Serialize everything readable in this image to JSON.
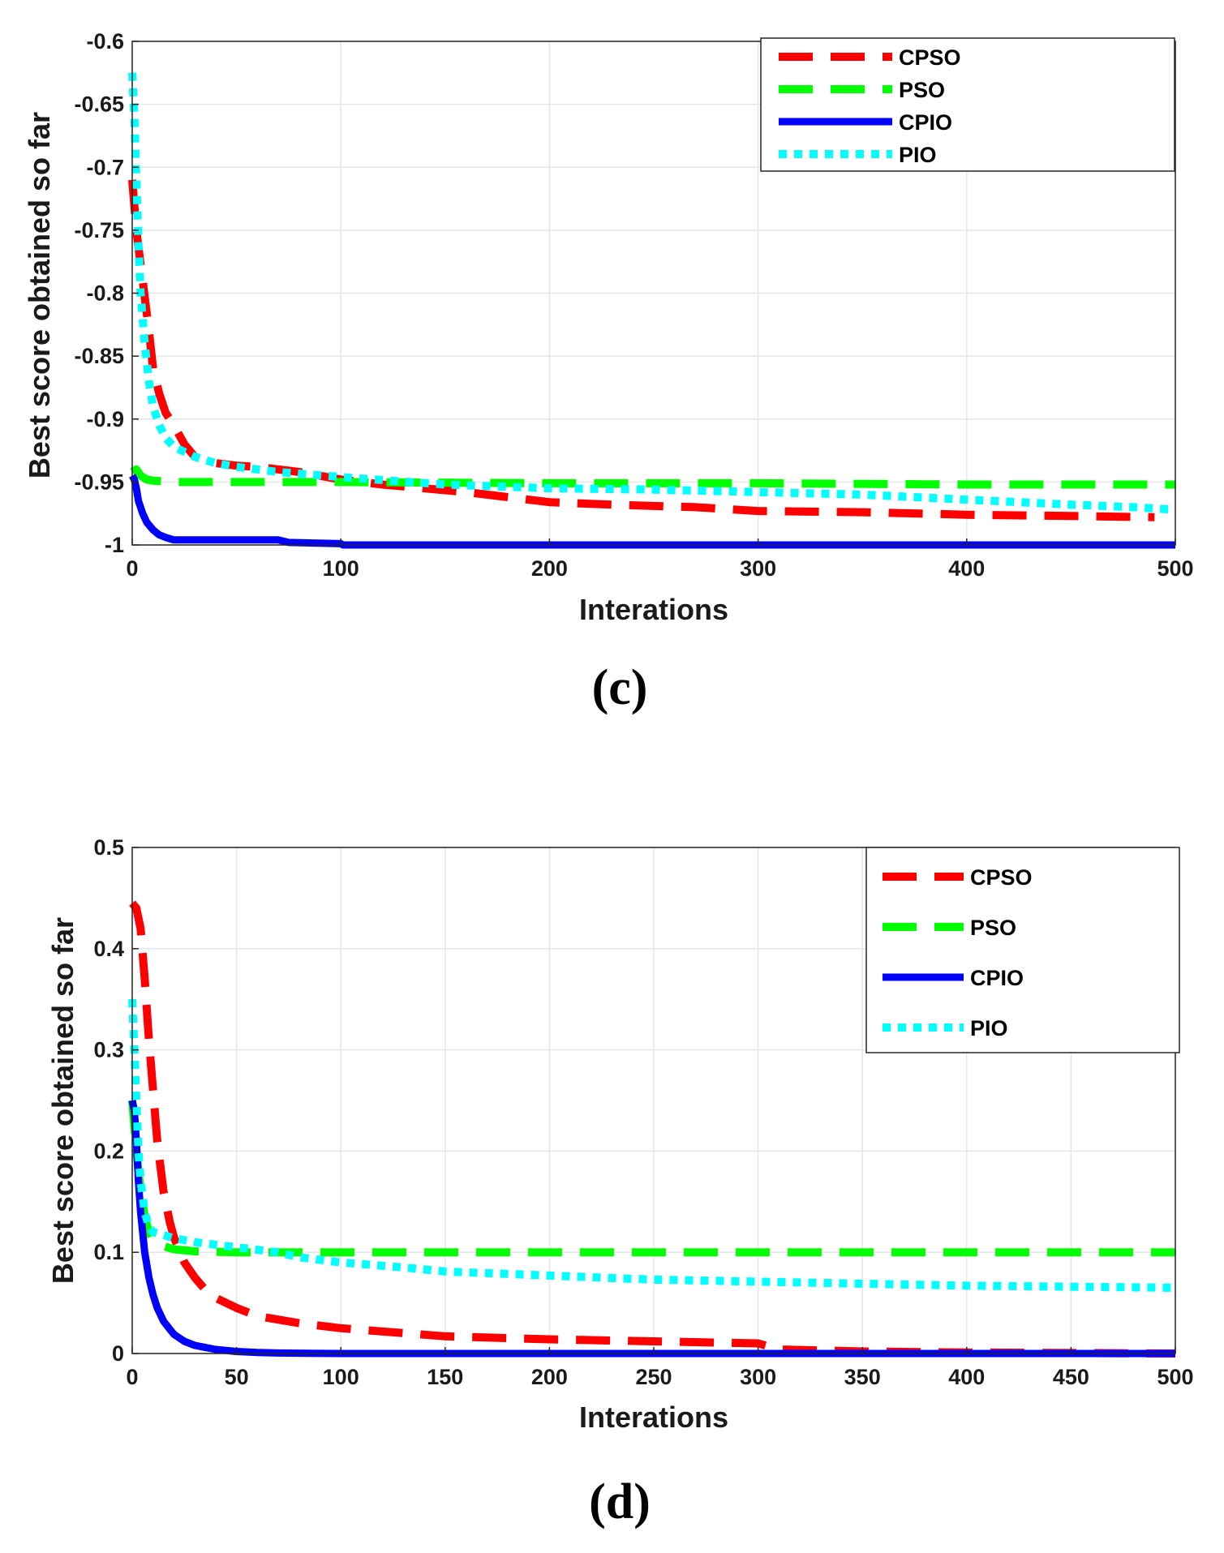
{
  "chart_data": [
    {
      "type": "line",
      "panel_label": "(c)",
      "xlabel": "Interations",
      "ylabel": "Best score obtained so far",
      "xlim": [
        0,
        500
      ],
      "ylim": [
        -1,
        -0.6
      ],
      "xticks": [
        0,
        100,
        200,
        300,
        400,
        500
      ],
      "yticks": [
        -1,
        -0.95,
        -0.9,
        -0.85,
        -0.8,
        -0.75,
        -0.7,
        -0.65,
        -0.6
      ],
      "xtick_labels": [
        "0",
        "100",
        "200",
        "300",
        "400",
        "500"
      ],
      "ytick_labels": [
        "-1",
        "-0.95",
        "-0.9",
        "-0.85",
        "-0.8",
        "-0.75",
        "-0.7",
        "-0.65",
        "-0.6"
      ],
      "grid": true,
      "legend_position": "top-right",
      "series": [
        {
          "name": "CPSO",
          "color": "#ff0000",
          "style": "dashed",
          "x": [
            0,
            2,
            5,
            8,
            10,
            13,
            16,
            20,
            25,
            30,
            40,
            50,
            60,
            80,
            100,
            120,
            140,
            160,
            180,
            200,
            230,
            270,
            300,
            350,
            400,
            450,
            490
          ],
          "y": [
            -0.71,
            -0.75,
            -0.79,
            -0.83,
            -0.86,
            -0.88,
            -0.895,
            -0.905,
            -0.92,
            -0.93,
            -0.935,
            -0.937,
            -0.938,
            -0.942,
            -0.948,
            -0.952,
            -0.955,
            -0.958,
            -0.962,
            -0.966,
            -0.968,
            -0.97,
            -0.973,
            -0.974,
            -0.976,
            -0.977,
            -0.978
          ]
        },
        {
          "name": "PSO",
          "color": "#00ff00",
          "style": "dashed",
          "x": [
            0,
            2,
            4,
            7,
            10,
            20,
            50,
            100,
            200,
            300,
            400,
            500
          ],
          "y": [
            -0.942,
            -0.94,
            -0.945,
            -0.948,
            -0.949,
            -0.95,
            -0.95,
            -0.95,
            -0.951,
            -0.951,
            -0.952,
            -0.952
          ]
        },
        {
          "name": "CPIO",
          "color": "#0000ff",
          "style": "solid",
          "x": [
            0,
            1,
            2,
            3,
            5,
            7,
            10,
            13,
            16,
            20,
            30,
            50,
            70,
            75,
            100,
            101,
            200,
            300,
            400,
            500
          ],
          "y": [
            -0.945,
            -0.948,
            -0.955,
            -0.965,
            -0.975,
            -0.982,
            -0.988,
            -0.992,
            -0.994,
            -0.996,
            -0.996,
            -0.996,
            -0.996,
            -0.998,
            -0.999,
            -1.0,
            -1.0,
            -1.0,
            -1.0,
            -1.0
          ]
        },
        {
          "name": "PIO",
          "color": "#00ffff",
          "style": "dotted",
          "x": [
            0,
            1,
            2,
            3,
            4,
            6,
            8,
            10,
            13,
            16,
            20,
            25,
            30,
            40,
            50,
            70,
            100,
            150,
            200,
            250,
            300,
            350,
            400,
            450,
            480,
            500
          ],
          "y": [
            -0.625,
            -0.66,
            -0.71,
            -0.76,
            -0.8,
            -0.84,
            -0.87,
            -0.89,
            -0.905,
            -0.915,
            -0.922,
            -0.926,
            -0.93,
            -0.935,
            -0.938,
            -0.942,
            -0.946,
            -0.952,
            -0.955,
            -0.956,
            -0.958,
            -0.96,
            -0.964,
            -0.968,
            -0.97,
            -0.972
          ]
        }
      ]
    },
    {
      "type": "line",
      "panel_label": "(d)",
      "xlabel": "Interations",
      "ylabel": "Best score obtained so far",
      "xlim": [
        0,
        500
      ],
      "ylim": [
        0,
        0.5
      ],
      "xticks": [
        0,
        50,
        100,
        150,
        200,
        250,
        300,
        350,
        400,
        450,
        500
      ],
      "yticks": [
        0,
        0.1,
        0.2,
        0.3,
        0.4,
        0.5
      ],
      "xtick_labels": [
        "0",
        "50",
        "100",
        "150",
        "200",
        "250",
        "300",
        "350",
        "400",
        "450",
        "500"
      ],
      "ytick_labels": [
        "0",
        "0.1",
        "0.2",
        "0.3",
        "0.4",
        "0.5"
      ],
      "grid": true,
      "legend_position": "top-right",
      "series": [
        {
          "name": "CPSO",
          "color": "#ff0000",
          "style": "dashed",
          "x": [
            0,
            2,
            4,
            6,
            8,
            10,
            12,
            15,
            18,
            20,
            25,
            30,
            35,
            40,
            50,
            60,
            80,
            100,
            150,
            200,
            250,
            300,
            310,
            350,
            400,
            500
          ],
          "y": [
            0.445,
            0.44,
            0.42,
            0.37,
            0.31,
            0.26,
            0.21,
            0.16,
            0.13,
            0.115,
            0.09,
            0.075,
            0.063,
            0.055,
            0.045,
            0.037,
            0.03,
            0.025,
            0.017,
            0.014,
            0.012,
            0.01,
            0.004,
            0.002,
            0.001,
            0.0
          ]
        },
        {
          "name": "PSO",
          "color": "#00ff00",
          "style": "dashed",
          "x": [
            0,
            2,
            4,
            6,
            8,
            10,
            15,
            20,
            30,
            50,
            100,
            200,
            300,
            400,
            500
          ],
          "y": [
            0.25,
            0.2,
            0.16,
            0.135,
            0.12,
            0.112,
            0.106,
            0.103,
            0.101,
            0.1,
            0.1,
            0.1,
            0.1,
            0.1,
            0.1
          ]
        },
        {
          "name": "CPIO",
          "color": "#0000ff",
          "style": "solid",
          "x": [
            0,
            1,
            2,
            3,
            4,
            6,
            8,
            10,
            12,
            15,
            18,
            20,
            25,
            30,
            40,
            50,
            60,
            70,
            100,
            200,
            300,
            400,
            500
          ],
          "y": [
            0.25,
            0.24,
            0.21,
            0.17,
            0.14,
            0.1,
            0.075,
            0.058,
            0.045,
            0.032,
            0.024,
            0.019,
            0.012,
            0.008,
            0.004,
            0.002,
            0.001,
            0.0005,
            0.0,
            0.0,
            0.0,
            0.0,
            0.0
          ]
        },
        {
          "name": "PIO",
          "color": "#00ffff",
          "style": "dotted",
          "x": [
            0,
            1,
            2,
            3,
            4,
            6,
            8,
            10,
            15,
            20,
            30,
            50,
            70,
            80,
            100,
            130,
            150,
            200,
            250,
            300,
            350,
            400,
            450,
            500
          ],
          "y": [
            0.35,
            0.3,
            0.25,
            0.2,
            0.17,
            0.14,
            0.125,
            0.12,
            0.117,
            0.114,
            0.11,
            0.105,
            0.1,
            0.095,
            0.09,
            0.085,
            0.081,
            0.077,
            0.073,
            0.071,
            0.069,
            0.067,
            0.066,
            0.065
          ]
        }
      ]
    }
  ]
}
